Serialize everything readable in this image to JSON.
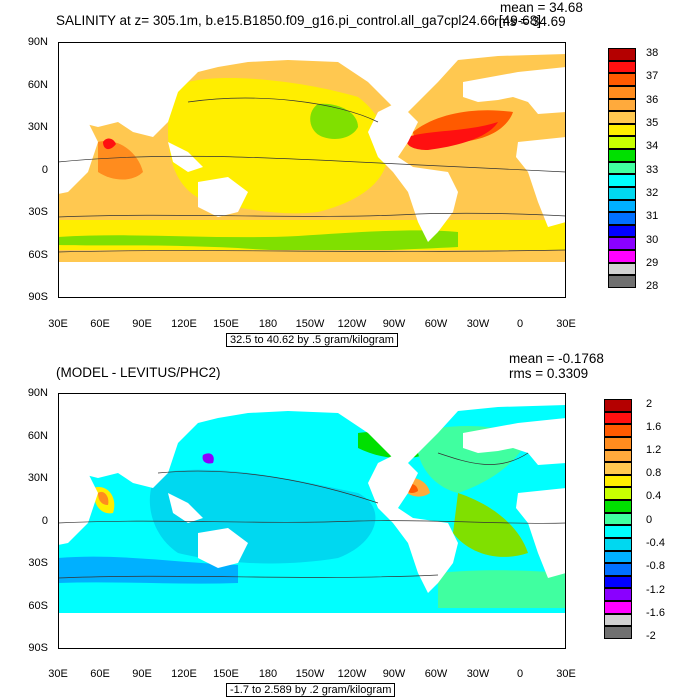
{
  "panel1": {
    "title": "SALINITY at z= 305.1m, b.e15.B1850.f09_g16.pi_control.all_ga7cpl24.66 [49-68]",
    "mean": "mean = 34.68",
    "rms": "rms = 34.69",
    "note": "32.5 to 40.62 by .5 gram/kilogram",
    "colorbar_labels": [
      "38",
      "37",
      "36",
      "35",
      "34",
      "33",
      "32",
      "31",
      "30",
      "29",
      "28"
    ],
    "colorbar_colors": [
      "#b40000",
      "#ff1010",
      "#ff5a00",
      "#ff8c1e",
      "#ffaa3c",
      "#ffc850",
      "#ffee00",
      "#c8ff00",
      "#00e000",
      "#40ffa0",
      "#00ffff",
      "#00d8f0",
      "#00b0ff",
      "#0070ff",
      "#0000ff",
      "#8a00ff",
      "#ff00ff",
      "#d0d0d0",
      "#707070"
    ]
  },
  "panel2": {
    "title": "(MODEL - LEVITUS/PHC2)",
    "mean": "mean = -0.1768",
    "rms": "rms = 0.3309",
    "note": "-1.7 to 2.589 by .2 gram/kilogram",
    "colorbar_labels": [
      "2",
      "1.6",
      "1.2",
      "0.8",
      "0.4",
      "0",
      "-0.4",
      "-0.8",
      "-1.2",
      "-1.6",
      "-2"
    ],
    "colorbar_colors": [
      "#b40000",
      "#ff1010",
      "#ff5a00",
      "#ff8c1e",
      "#ffaa3c",
      "#ffc850",
      "#ffee00",
      "#c8ff00",
      "#00e000",
      "#40ffa0",
      "#00ffff",
      "#00d8f0",
      "#00b0ff",
      "#0070ff",
      "#0000ff",
      "#8a00ff",
      "#ff00ff",
      "#d0d0d0",
      "#707070"
    ]
  },
  "lat_labels": [
    "90N",
    "60N",
    "30N",
    "0",
    "30S",
    "60S",
    "90S"
  ],
  "lon_labels": [
    "30E",
    "60E",
    "90E",
    "120E",
    "150E",
    "180",
    "150W",
    "120W",
    "90W",
    "60W",
    "30W",
    "0",
    "30E"
  ],
  "colors": {
    "land": "#ffffff",
    "panel1_base": "#ffc850",
    "panel2_base": "#00ffff"
  }
}
